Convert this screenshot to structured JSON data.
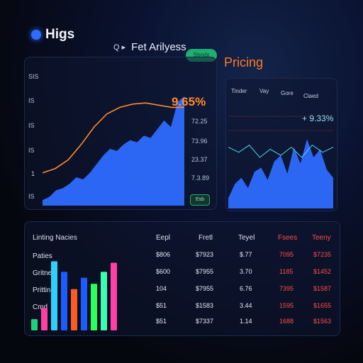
{
  "header": {
    "logo_text": "Higs",
    "search_icon": "search-icon",
    "search_text": "Fet Arilyess",
    "pill_label": "Sbnds",
    "pricing": "Pricing"
  },
  "left_panel": {
    "y_ticks": [
      "SIS",
      "IS",
      "IS",
      "IS",
      "1",
      "IS"
    ],
    "main_value": "9.65%",
    "side_values": [
      "72.25",
      "73.96",
      "23.37",
      "7.3.89"
    ],
    "button_label": "Esb"
  },
  "right_panel": {
    "tabs": [
      "Tinder",
      "Vay",
      "Gore",
      "Claed"
    ],
    "value": "+ 9.33%"
  },
  "table": {
    "title": "Linting Nacies",
    "row_labels": [
      "Paties",
      "Gritnes",
      "Pritting",
      "Cmd"
    ],
    "columns": [
      {
        "header": "Eepl",
        "cells": [
          "$806",
          "$600",
          "104",
          "$51",
          "$51"
        ],
        "red": false
      },
      {
        "header": "Fretl",
        "cells": [
          "$7923",
          "$7955",
          "$7955",
          "$1583",
          "$7337"
        ],
        "red": false
      },
      {
        "header": "Teyel",
        "cells": [
          "$.77",
          "3.70",
          "6.76",
          "3.44",
          "1.14"
        ],
        "red": false
      },
      {
        "header": "Fsees",
        "cells": [
          "7095",
          "1185",
          "7395",
          "1595",
          "1688"
        ],
        "red": true
      },
      {
        "header": "Teeny",
        "cells": [
          "$7235",
          "$1452",
          "$1587",
          "$1655",
          "$1563"
        ],
        "red": true
      }
    ]
  },
  "colors": {
    "accent_blue": "#2e6bff",
    "orange": "#ff8a2a",
    "cyan": "#4fd7f5",
    "red": "#ff4b4b",
    "green": "#1fae71"
  },
  "chart_data": [
    {
      "type": "area",
      "series": [
        {
          "values": [
            0.05,
            0.08,
            0.14,
            0.16,
            0.2,
            0.26,
            0.24,
            0.3,
            0.38,
            0.46,
            0.52,
            0.5,
            0.56,
            0.6,
            0.58,
            0.64,
            0.62,
            0.7,
            0.78,
            0.72,
            0.95,
            1.0
          ]
        }
      ],
      "overlay_line": [
        0.3,
        0.34,
        0.42,
        0.56,
        0.72,
        0.84,
        0.9,
        0.93,
        0.94,
        0.92,
        0.9,
        0.9
      ]
    },
    {
      "type": "area",
      "series": [
        {
          "values": [
            0.1,
            0.24,
            0.3,
            0.2,
            0.36,
            0.4,
            0.28,
            0.46,
            0.52,
            0.34,
            0.6,
            0.44,
            0.68,
            0.5,
            0.58,
            0.38,
            0.3
          ]
        }
      ],
      "overlay_line": [
        0.6,
        0.55,
        0.62,
        0.5,
        0.58,
        0.52,
        0.6,
        0.5,
        0.62,
        0.55,
        0.6
      ]
    },
    {
      "type": "bar",
      "values": [
        0.15,
        0.3,
        0.92,
        0.78,
        0.55,
        0.7,
        0.62,
        0.78,
        0.9
      ],
      "colors": [
        "#1fd17a",
        "#ff3fa4",
        "#2fd0ff",
        "#1b5cff",
        "#ff5a1f",
        "#1b5cff",
        "#2bff5a",
        "#3affb0",
        "#ff3fa4"
      ]
    }
  ]
}
